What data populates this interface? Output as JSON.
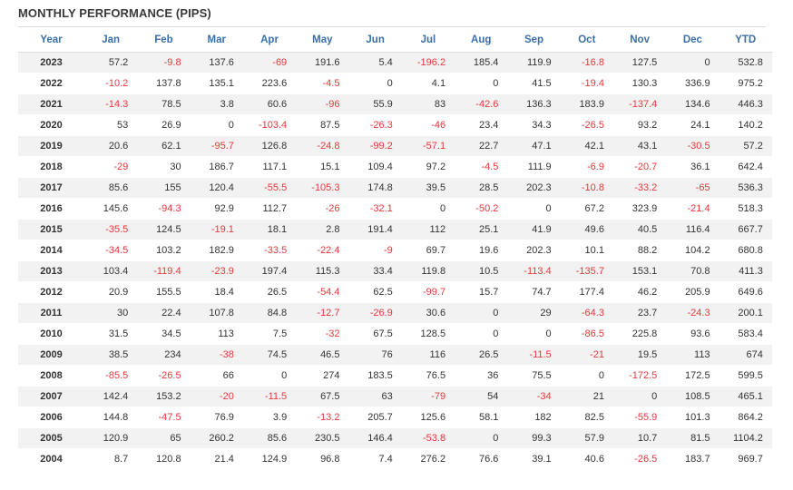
{
  "title": "MONTHLY PERFORMANCE (PIPS)",
  "colors": {
    "header": "#3b6fa8",
    "negative": "#e5383b",
    "text": "#333333",
    "stripe": "#f2f2f2"
  },
  "headers": [
    "Year",
    "Jan",
    "Feb",
    "Mar",
    "Apr",
    "May",
    "Jun",
    "Jul",
    "Aug",
    "Sep",
    "Oct",
    "Nov",
    "Dec",
    "YTD"
  ],
  "rows": [
    [
      "2023",
      "57.2",
      "-9.8",
      "137.6",
      "-69",
      "191.6",
      "5.4",
      "-196.2",
      "185.4",
      "119.9",
      "-16.8",
      "127.5",
      "0",
      "532.8"
    ],
    [
      "2022",
      "-10.2",
      "137.8",
      "135.1",
      "223.6",
      "-4.5",
      "0",
      "4.1",
      "0",
      "41.5",
      "-19.4",
      "130.3",
      "336.9",
      "975.2"
    ],
    [
      "2021",
      "-14.3",
      "78.5",
      "3.8",
      "60.6",
      "-96",
      "55.9",
      "83",
      "-42.6",
      "136.3",
      "183.9",
      "-137.4",
      "134.6",
      "446.3"
    ],
    [
      "2020",
      "53",
      "26.9",
      "0",
      "-103.4",
      "87.5",
      "-26.3",
      "-46",
      "23.4",
      "34.3",
      "-26.5",
      "93.2",
      "24.1",
      "140.2"
    ],
    [
      "2019",
      "20.6",
      "62.1",
      "-95.7",
      "126.8",
      "-24.8",
      "-99.2",
      "-57.1",
      "22.7",
      "47.1",
      "42.1",
      "43.1",
      "-30.5",
      "57.2"
    ],
    [
      "2018",
      "-29",
      "30",
      "186.7",
      "117.1",
      "15.1",
      "109.4",
      "97.2",
      "-4.5",
      "111.9",
      "-6.9",
      "-20.7",
      "36.1",
      "642.4"
    ],
    [
      "2017",
      "85.6",
      "155",
      "120.4",
      "-55.5",
      "-105.3",
      "174.8",
      "39.5",
      "28.5",
      "202.3",
      "-10.8",
      "-33.2",
      "-65",
      "536.3"
    ],
    [
      "2016",
      "145.6",
      "-94.3",
      "92.9",
      "112.7",
      "-26",
      "-32.1",
      "0",
      "-50.2",
      "0",
      "67.2",
      "323.9",
      "-21.4",
      "518.3"
    ],
    [
      "2015",
      "-35.5",
      "124.5",
      "-19.1",
      "18.1",
      "2.8",
      "191.4",
      "112",
      "25.1",
      "41.9",
      "49.6",
      "40.5",
      "116.4",
      "667.7"
    ],
    [
      "2014",
      "-34.5",
      "103.2",
      "182.9",
      "-33.5",
      "-22.4",
      "-9",
      "69.7",
      "19.6",
      "202.3",
      "10.1",
      "88.2",
      "104.2",
      "680.8"
    ],
    [
      "2013",
      "103.4",
      "-119.4",
      "-23.9",
      "197.4",
      "115.3",
      "33.4",
      "119.8",
      "10.5",
      "-113.4",
      "-135.7",
      "153.1",
      "70.8",
      "411.3"
    ],
    [
      "2012",
      "20.9",
      "155.5",
      "18.4",
      "26.5",
      "-54.4",
      "62.5",
      "-99.7",
      "15.7",
      "74.7",
      "177.4",
      "46.2",
      "205.9",
      "649.6"
    ],
    [
      "2011",
      "30",
      "22.4",
      "107.8",
      "84.8",
      "-12.7",
      "-26.9",
      "30.6",
      "0",
      "29",
      "-64.3",
      "23.7",
      "-24.3",
      "200.1"
    ],
    [
      "2010",
      "31.5",
      "34.5",
      "113",
      "7.5",
      "-32",
      "67.5",
      "128.5",
      "0",
      "0",
      "-86.5",
      "225.8",
      "93.6",
      "583.4"
    ],
    [
      "2009",
      "38.5",
      "234",
      "-38",
      "74.5",
      "46.5",
      "76",
      "116",
      "26.5",
      "-11.5",
      "-21",
      "19.5",
      "113",
      "674"
    ],
    [
      "2008",
      "-85.5",
      "-26.5",
      "66",
      "0",
      "274",
      "183.5",
      "76.5",
      "36",
      "75.5",
      "0",
      "-172.5",
      "172.5",
      "599.5"
    ],
    [
      "2007",
      "142.4",
      "153.2",
      "-20",
      "-11.5",
      "67.5",
      "63",
      "-79",
      "54",
      "-34",
      "21",
      "0",
      "108.5",
      "465.1"
    ],
    [
      "2006",
      "144.8",
      "-47.5",
      "76.9",
      "3.9",
      "-13.2",
      "205.7",
      "125.6",
      "58.1",
      "182",
      "82.5",
      "-55.9",
      "101.3",
      "864.2"
    ],
    [
      "2005",
      "120.9",
      "65",
      "260.2",
      "85.6",
      "230.5",
      "146.4",
      "-53.8",
      "0",
      "99.3",
      "57.9",
      "10.7",
      "81.5",
      "1104.2"
    ],
    [
      "2004",
      "8.7",
      "120.8",
      "21.4",
      "124.9",
      "96.8",
      "7.4",
      "276.2",
      "76.6",
      "39.1",
      "40.6",
      "-26.5",
      "183.7",
      "969.7"
    ]
  ]
}
